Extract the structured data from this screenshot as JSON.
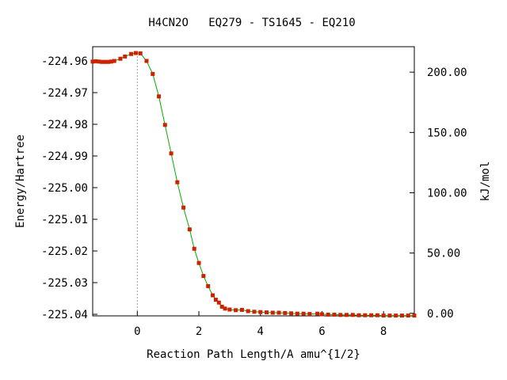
{
  "chart_data": {
    "type": "line",
    "title": "H4CN2O   EQ279 - TS1645 - EQ210",
    "xlabel": "Reaction Path Length/A amu^{1/2}",
    "ylabel": "Energy/Hartree",
    "y2label": "kJ/mol",
    "xlim": [
      -1.45,
      9.0
    ],
    "ylim": [
      -225.0405,
      -224.9555
    ],
    "y2lim": [
      -2.1,
      221.1
    ],
    "xticks": [
      0,
      2,
      4,
      6,
      8
    ],
    "yticks": [
      -224.96,
      -224.97,
      -224.98,
      -224.99,
      -225.0,
      -225.01,
      -225.02,
      -225.03,
      -225.04
    ],
    "y2ticks": [
      0.0,
      50.0,
      100.0,
      150.0,
      200.0
    ],
    "xtick_labels": [
      "0",
      "2",
      "4",
      "6",
      "8"
    ],
    "ytick_labels": [
      "-224.96",
      "-224.97",
      "-224.98",
      "-224.99",
      "-225.00",
      "-225.01",
      "-225.02",
      "-225.03",
      "-225.04"
    ],
    "y2tick_labels": [
      "0.00",
      "50.00",
      "100.00",
      "150.00",
      "200.00"
    ],
    "ts_x": 0.0,
    "grid": false,
    "colors": {
      "line": "#00aa00",
      "marker": "#cc2200",
      "ts_line": "#999999",
      "axis": "#000000"
    },
    "x": [
      -1.45,
      -1.35,
      -1.25,
      -1.15,
      -1.05,
      -0.95,
      -0.85,
      -0.75,
      -0.55,
      -0.4,
      -0.2,
      -0.05,
      0.1,
      0.3,
      0.5,
      0.7,
      0.9,
      1.1,
      1.3,
      1.5,
      1.7,
      1.85,
      2.0,
      2.15,
      2.3,
      2.45,
      2.55,
      2.65,
      2.75,
      2.85,
      3.0,
      3.2,
      3.4,
      3.6,
      3.8,
      4.0,
      4.2,
      4.4,
      4.6,
      4.8,
      5.0,
      5.2,
      5.4,
      5.6,
      5.85,
      6.0,
      6.2,
      6.4,
      6.6,
      6.8,
      7.0,
      7.2,
      7.4,
      7.6,
      7.8,
      8.0,
      8.2,
      8.4,
      8.6,
      8.8,
      9.0
    ],
    "y": [
      -224.9602,
      -224.9601,
      -224.9602,
      -224.9603,
      -224.9603,
      -224.9603,
      -224.9602,
      -224.96,
      -224.9593,
      -224.9586,
      -224.9578,
      -224.9575,
      -224.9576,
      -224.96,
      -224.9641,
      -224.9712,
      -224.9802,
      -224.9892,
      -224.9983,
      -225.0063,
      -225.0132,
      -225.0193,
      -225.0238,
      -225.0279,
      -225.0311,
      -225.034,
      -225.0354,
      -225.0363,
      -225.0376,
      -225.0382,
      -225.0385,
      -225.0387,
      -225.0386,
      -225.039,
      -225.0392,
      -225.0393,
      -225.0394,
      -225.0395,
      -225.0395,
      -225.0396,
      -225.0397,
      -225.0398,
      -225.0398,
      -225.0399,
      -225.0398,
      -225.04,
      -225.0401,
      -225.0401,
      -225.0402,
      -225.0402,
      -225.0402,
      -225.0403,
      -225.0403,
      -225.0403,
      -225.0403,
      -225.0404,
      -225.0404,
      -225.0404,
      -225.0404,
      -225.0404,
      -225.0404
    ]
  }
}
